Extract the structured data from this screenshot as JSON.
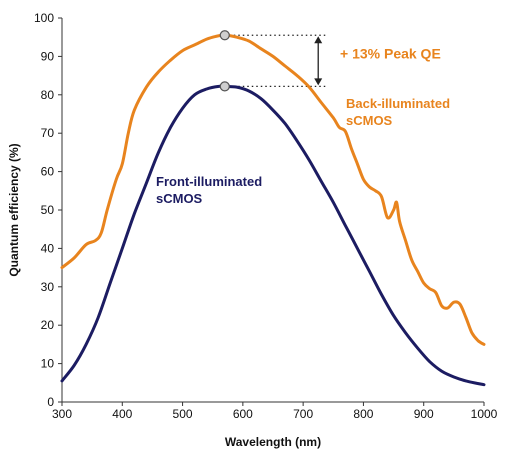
{
  "chart_data": {
    "type": "line",
    "title": "",
    "xlabel": "Wavelength (nm)",
    "ylabel": "Quantum efficiency (%)",
    "xlim": [
      300,
      1000
    ],
    "ylim": [
      0,
      100
    ],
    "x_ticks": [
      "300",
      "400",
      "500",
      "600",
      "700",
      "800",
      "900",
      "1000"
    ],
    "y_ticks": [
      "0",
      "10",
      "20",
      "30",
      "40",
      "50",
      "60",
      "70",
      "80",
      "90",
      "100"
    ],
    "grid": false,
    "legend": "none",
    "series": [
      {
        "name_line1": "Back-illuminated",
        "name_line2": "sCMOS",
        "color": "#e8841e",
        "points": [
          [
            300,
            35
          ],
          [
            320,
            37.5
          ],
          [
            340,
            41
          ],
          [
            355,
            42
          ],
          [
            365,
            44
          ],
          [
            375,
            50
          ],
          [
            390,
            58
          ],
          [
            400,
            62
          ],
          [
            410,
            70
          ],
          [
            420,
            76
          ],
          [
            440,
            82
          ],
          [
            460,
            86
          ],
          [
            480,
            89
          ],
          [
            500,
            91.5
          ],
          [
            520,
            93
          ],
          [
            540,
            94.5
          ],
          [
            555,
            95.2
          ],
          [
            570,
            95.5
          ],
          [
            590,
            95
          ],
          [
            610,
            94
          ],
          [
            630,
            92
          ],
          [
            650,
            90
          ],
          [
            670,
            87.5
          ],
          [
            690,
            85
          ],
          [
            710,
            82
          ],
          [
            730,
            78
          ],
          [
            750,
            74
          ],
          [
            760,
            71.5
          ],
          [
            770,
            70.5
          ],
          [
            780,
            66
          ],
          [
            790,
            62
          ],
          [
            800,
            58
          ],
          [
            810,
            56
          ],
          [
            820,
            55
          ],
          [
            830,
            53.5
          ],
          [
            840,
            48
          ],
          [
            850,
            50
          ],
          [
            855,
            52
          ],
          [
            860,
            47
          ],
          [
            870,
            42
          ],
          [
            880,
            37
          ],
          [
            890,
            34
          ],
          [
            900,
            31
          ],
          [
            910,
            29.5
          ],
          [
            920,
            28.5
          ],
          [
            930,
            25
          ],
          [
            940,
            24.5
          ],
          [
            950,
            26
          ],
          [
            960,
            25.5
          ],
          [
            970,
            22
          ],
          [
            980,
            18
          ],
          [
            990,
            16
          ],
          [
            1000,
            15
          ]
        ]
      },
      {
        "name_line1": "Front-illuminated",
        "name_line2": "sCMOS",
        "color": "#1c1c62",
        "points": [
          [
            300,
            5.5
          ],
          [
            320,
            9.5
          ],
          [
            340,
            15
          ],
          [
            360,
            22
          ],
          [
            380,
            31
          ],
          [
            400,
            40
          ],
          [
            420,
            49
          ],
          [
            440,
            57
          ],
          [
            460,
            65
          ],
          [
            480,
            71.5
          ],
          [
            500,
            76.5
          ],
          [
            520,
            80
          ],
          [
            540,
            81.5
          ],
          [
            560,
            82.2
          ],
          [
            570,
            82.2
          ],
          [
            590,
            82
          ],
          [
            610,
            81
          ],
          [
            630,
            79
          ],
          [
            650,
            76
          ],
          [
            670,
            72.5
          ],
          [
            690,
            68
          ],
          [
            710,
            63
          ],
          [
            730,
            57.5
          ],
          [
            750,
            52
          ],
          [
            770,
            46
          ],
          [
            790,
            40
          ],
          [
            810,
            34
          ],
          [
            830,
            28
          ],
          [
            850,
            22.5
          ],
          [
            870,
            18
          ],
          [
            890,
            14
          ],
          [
            910,
            10.5
          ],
          [
            930,
            8
          ],
          [
            950,
            6.5
          ],
          [
            970,
            5.5
          ],
          [
            1000,
            4.5
          ]
        ]
      }
    ],
    "peak_markers": [
      {
        "series": 0,
        "x": 570,
        "y": 95.5
      },
      {
        "series": 1,
        "x": 570,
        "y": 82.2
      }
    ],
    "annotation": {
      "text": "+ 13% Peak QE",
      "color": "#e8841e",
      "from_y": 95.5,
      "to_y": 82.2,
      "guide_end_x": 740,
      "arrow_x": 725
    }
  }
}
